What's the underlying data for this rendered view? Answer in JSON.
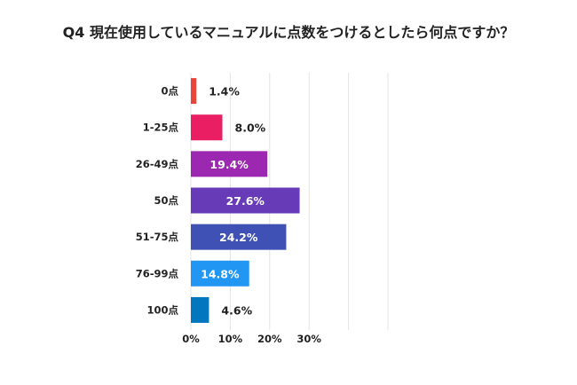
{
  "chart_data": {
    "type": "bar",
    "orientation": "horizontal",
    "title": "Q4 現在使用しているマニュアルに点数をつけるとしたら何点ですか？",
    "categories": [
      "0点",
      "1-25点",
      "26-49点",
      "50点",
      "51-75点",
      "76-99点",
      "100点"
    ],
    "values": [
      1.4,
      8.0,
      19.4,
      27.6,
      24.2,
      14.8,
      4.6
    ],
    "value_labels": [
      "1.4%",
      "8.0%",
      "19.4%",
      "27.6%",
      "24.2%",
      "14.8%",
      "4.6%"
    ],
    "colors": [
      "#e8453c",
      "#e91e63",
      "#9c27b0",
      "#673ab7",
      "#3f51b5",
      "#2196f3",
      "#0277bd"
    ],
    "x_ticks": [
      0,
      10,
      20,
      30
    ],
    "x_tick_labels": [
      "0%",
      "10%",
      "20%",
      "30%"
    ],
    "xlim": [
      0,
      50
    ],
    "xlabel": "",
    "ylabel": "",
    "grid": true,
    "legend": "none"
  }
}
